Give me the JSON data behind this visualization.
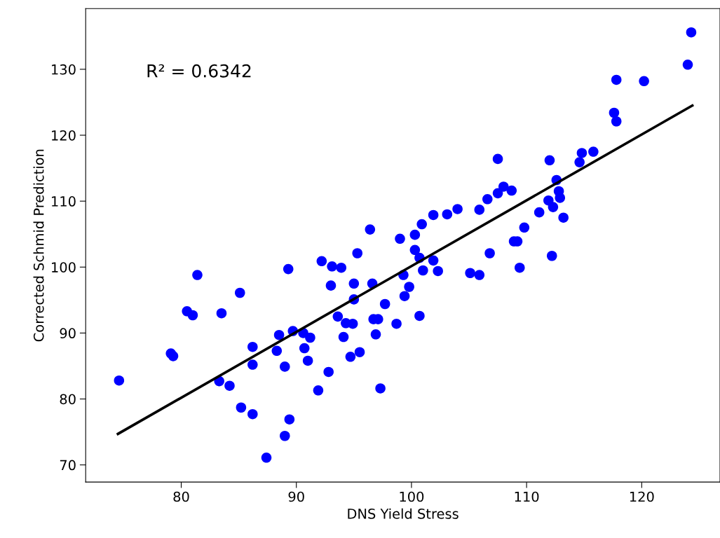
{
  "chart_data": {
    "type": "scatter",
    "xlabel": "DNS Yield Stress",
    "ylabel": "Corrected Schmid Prediction",
    "xlim": [
      71.7,
      126.8
    ],
    "ylim": [
      67.4,
      139.2
    ],
    "xticks": [
      80,
      90,
      100,
      110,
      120
    ],
    "yticks": [
      70,
      80,
      90,
      100,
      110,
      120,
      130
    ],
    "grid": false,
    "marker": "circle",
    "annotations": [
      "R² = 0.6342"
    ],
    "series": [
      {
        "color": "#0000ff",
        "x": [
          74.6,
          79.1,
          79.3,
          80.5,
          81.0,
          81.4,
          83.5,
          85.1,
          83.3,
          84.2,
          85.2,
          86.2,
          86.2,
          86.2,
          87.4,
          88.3,
          88.5,
          89.0,
          89.0,
          89.3,
          89.4,
          89.7,
          90.6,
          91.2,
          90.7,
          91.0,
          91.9,
          92.2,
          92.8,
          93.0,
          93.1,
          93.9,
          93.6,
          94.1,
          94.3,
          94.7,
          94.9,
          95.0,
          95.0,
          95.3,
          95.5,
          96.4,
          96.6,
          96.7,
          96.9,
          97.1,
          97.3,
          97.7,
          98.7,
          99.0,
          99.3,
          99.4,
          99.8,
          100.3,
          100.3,
          100.7,
          100.7,
          100.9,
          101.0,
          101.9,
          101.9,
          102.3,
          103.1,
          104.0,
          105.1,
          105.9,
          105.9,
          106.6,
          106.8,
          107.5,
          107.5,
          108.0,
          108.7,
          108.9,
          109.2,
          109.4,
          109.8,
          111.1,
          111.9,
          112.0,
          112.2,
          112.3,
          112.6,
          112.8,
          112.9,
          113.2,
          114.6,
          114.8,
          115.8,
          117.6,
          117.8,
          117.8,
          120.2,
          124.0,
          124.3
        ],
        "values": [
          82.8,
          86.9,
          86.5,
          93.3,
          92.7,
          98.8,
          93.0,
          96.1,
          82.7,
          82.0,
          78.7,
          77.7,
          85.2,
          87.9,
          71.1,
          87.3,
          89.7,
          74.4,
          84.9,
          99.7,
          76.9,
          90.3,
          90.0,
          89.3,
          87.7,
          85.8,
          81.3,
          100.9,
          84.1,
          97.2,
          100.1,
          99.9,
          92.5,
          89.4,
          91.5,
          86.4,
          91.4,
          95.1,
          97.5,
          102.1,
          87.1,
          105.7,
          97.5,
          92.1,
          89.8,
          92.1,
          81.6,
          94.4,
          91.4,
          104.3,
          98.8,
          95.6,
          97.0,
          102.6,
          104.9,
          92.6,
          101.4,
          106.5,
          99.5,
          107.9,
          101.0,
          99.4,
          108.0,
          108.8,
          99.1,
          98.8,
          108.7,
          110.3,
          102.1,
          116.4,
          111.2,
          112.2,
          111.6,
          103.9,
          103.9,
          99.9,
          106.0,
          108.3,
          110.1,
          116.2,
          101.7,
          109.1,
          113.2,
          111.5,
          110.5,
          107.5,
          115.9,
          117.3,
          117.5,
          123.4,
          122.1,
          128.4,
          128.2,
          130.7,
          135.6
        ]
      },
      {
        "type": "line",
        "color": "#000000",
        "marker": "none",
        "line_style": "solid",
        "x": [
          74.5,
          124.4
        ],
        "values": [
          74.7,
          124.5
        ]
      }
    ]
  }
}
